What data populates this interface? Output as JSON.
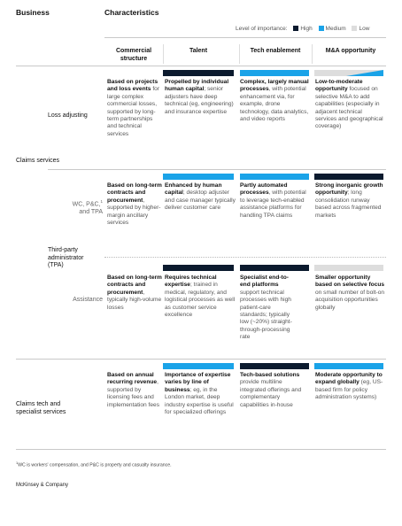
{
  "header": {
    "business": "Business",
    "characteristics": "Characteristics"
  },
  "legend": {
    "title": "Level of importance:",
    "items": [
      {
        "label": "High",
        "color": "#0b1a2e"
      },
      {
        "label": "Medium",
        "color": "#1aa3e8"
      },
      {
        "label": "Low",
        "color": "#dddddd"
      }
    ]
  },
  "columns": [
    "Commercial structure",
    "Talent",
    "Tech enablement",
    "M&A opportunity"
  ],
  "groups": {
    "claims_services": "Claims services",
    "loss_adjusting": "Loss adjusting",
    "tpa": "Third-party administrator (TPA)",
    "wc_pc": {
      "prefix": "WC, P&C,",
      "sup": "1",
      "suffix": " and TPA"
    },
    "assistance": "Assistance",
    "claims_tech": "Claims tech and specialist services"
  },
  "rows": {
    "loss_adjusting": {
      "commercial": {
        "bold": "Based on projects and loss events",
        "rest": " for large complex commercial losses, supported by long-term partnerships and technical services"
      },
      "talent": {
        "bold": "Propelled by individual human capital",
        "rest": "; senior adjusters have deep technical (eg, engineering) and insurance expertise"
      },
      "tech": {
        "bold": "Complex, largely manual processes",
        "rest": ", with potential enhancement via, for example, drone technology, data analytics, and video reports"
      },
      "mna": {
        "bold": "Low-to-moderate opportunity",
        "rest": " focused on selective M&A to add capabilities (especially in adjacent technical services and geographical coverage)"
      }
    },
    "wc_pc": {
      "commercial": {
        "bold": "Based on long-term contracts and procurement",
        "rest": ", supported by higher-margin ancillary services"
      },
      "talent": {
        "bold": "Enhanced by human capital",
        "rest": "; desktop adjuster and case manager typically deliver customer care"
      },
      "tech": {
        "bold": "Partly automated processes",
        "rest": ", with potential to leverage tech-enabled assistance platforms for handling TPA claims"
      },
      "mna": {
        "bold": "Strong inorganic growth opportunity",
        "rest": "; long consolidation runway based across fragmented markets"
      }
    },
    "assistance": {
      "commercial": {
        "bold": "Based on long-term contracts and procurement",
        "rest": ", typically high-volume losses"
      },
      "talent": {
        "bold": "Requires technical expertise",
        "rest": "; trained in medical, regulatory, and logistical processes as well as customer service excellence"
      },
      "tech": {
        "bold": "Specialist end-to-end platforms",
        "rest": " support technical processes with high patient-care standards; typically low (~20%) straight-through-processing rate"
      },
      "mna": {
        "bold": "Smaller opportunity based on selective focus",
        "rest": " on small number of bolt-on acquisition opportunities globally"
      }
    },
    "claims_tech": {
      "commercial": {
        "bold": "Based on annual recurring revenue",
        "rest": ", supported by licensing fees and implementation fees"
      },
      "talent": {
        "bold": "Importance of expertise varies by line of business",
        "rest": "; eg, in the London market, deep industry expertise is useful for specialized offerings"
      },
      "tech": {
        "bold": "Tech-based solutions",
        "rest": " provide multiline integrated offerings and complementary capabilities in-house"
      },
      "mna": {
        "bold": "Moderate opportunity to expand globally",
        "rest": " (eg, US-based firm for policy administration systems)"
      }
    }
  },
  "footnote": {
    "sup": "1",
    "text": "WC is workers' compensation, and P&C is property and casualty insurance."
  },
  "brand": "McKinsey & Company"
}
